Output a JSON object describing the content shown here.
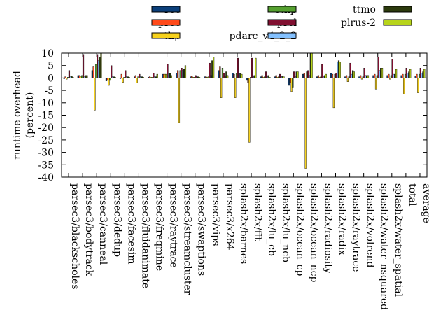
{
  "chart_data": {
    "type": "bar",
    "ylabel_lines": [
      "runtime overhead",
      "(percent)"
    ],
    "xlabel": "",
    "ylim": [
      -40,
      10
    ],
    "yticks": [
      10,
      5,
      0,
      -5,
      -10,
      -15,
      -20,
      -25,
      -30,
      -35,
      -40
    ],
    "grid": false,
    "legend_placement": "top",
    "categories": [
      "parsec3/blackscholes",
      "parsec3/bodytrack",
      "parsec3/canneal",
      "parsec3/dedup",
      "parsec3/facesim",
      "parsec3/fluidanimate",
      "parsec3/freqmine",
      "parsec3/raytrace",
      "parsec3/streamcluster",
      "parsec3/swaptions",
      "parsec3/vips",
      "parsec3/x264",
      "splash2x/barnes",
      "splash2x/fft",
      "splash2x/lu_cb",
      "splash2x/lu_ncb",
      "splash2x/ocean_cp",
      "splash2x/ocean_ncp",
      "splash2x/radiosity",
      "splash2x/radix",
      "splash2x/raytrace",
      "splash2x/volrend",
      "splash2x/water_nsquared",
      "splash2x/water_spatial",
      "total",
      "average"
    ],
    "series": [
      {
        "name": "rec",
        "color": "#0b3f7a",
        "values": [
          -0.3,
          1.0,
          3.0,
          -1.2,
          -0.3,
          0.5,
          0.3,
          1.5,
          2.0,
          0.5,
          0.5,
          3.0,
          2.0,
          -1.0,
          0.5,
          0.5,
          -3.0,
          1.5,
          0.5,
          2.0,
          0.5,
          0.5,
          1.0,
          1.0,
          1.0,
          0.8
        ]
      },
      {
        "name": "prec",
        "color": "#ff4a1a",
        "values": [
          0.5,
          1.0,
          4.5,
          -1.0,
          1.5,
          1.0,
          0.5,
          1.5,
          3.0,
          0.8,
          0.5,
          4.5,
          1.5,
          -2.0,
          1.0,
          1.0,
          -2.0,
          2.0,
          1.0,
          1.5,
          1.0,
          1.0,
          1.5,
          1.5,
          1.5,
          1.5
        ]
      },
      {
        "name": "thp",
        "color": "#f7d21c",
        "values": [
          -0.5,
          0.5,
          -13.0,
          -3.0,
          -1.8,
          -2.0,
          0.3,
          1.5,
          -18.0,
          0.3,
          0.3,
          -8.0,
          -8.0,
          -26.0,
          0.3,
          0.3,
          -5.5,
          -36.5,
          0.3,
          -12.0,
          -1.5,
          -0.5,
          -4.5,
          -0.5,
          -6.5,
          -6.0
        ]
      },
      {
        "name": "ethp",
        "color": "#55a02f",
        "values": [
          0.3,
          1.0,
          5.5,
          -1.0,
          0.3,
          0.5,
          0.3,
          1.5,
          3.0,
          0.3,
          0.5,
          4.0,
          2.0,
          0.3,
          0.5,
          0.5,
          -4.0,
          2.5,
          0.5,
          1.5,
          0.5,
          0.5,
          1.0,
          1.0,
          1.5,
          1.5
        ]
      },
      {
        "name": "prcl",
        "color": "#801030",
        "values": [
          3.0,
          9.5,
          9.5,
          5.0,
          3.0,
          1.5,
          2.0,
          5.5,
          4.0,
          1.0,
          6.0,
          2.0,
          8.0,
          8.0,
          2.5,
          1.5,
          2.5,
          3.0,
          5.5,
          2.0,
          6.0,
          4.0,
          8.5,
          7.5,
          4.0,
          4.0
        ]
      },
      {
        "name": "pdarc_v4_2_2",
        "color": "#84c1ff",
        "values": [
          0.5,
          0.5,
          7.0,
          0.5,
          0.5,
          0.5,
          0.5,
          2.0,
          3.0,
          0.5,
          1.0,
          0.5,
          2.0,
          0.5,
          0.5,
          0.5,
          0.5,
          1.0,
          0.5,
          6.5,
          1.5,
          1.0,
          3.0,
          1.5,
          2.0,
          2.0
        ]
      },
      {
        "name": "ttmo",
        "color": "#2c3a0d",
        "values": [
          0.8,
          1.0,
          8.5,
          0.5,
          0.5,
          0.5,
          0.5,
          2.0,
          3.5,
          0.5,
          7.0,
          2.5,
          2.0,
          1.0,
          1.0,
          0.8,
          2.5,
          10.0,
          1.0,
          7.0,
          3.0,
          1.0,
          4.0,
          1.5,
          2.5,
          2.5
        ]
      },
      {
        "name": "plrus-2",
        "color": "#b7d41a",
        "values": [
          0.3,
          1.0,
          10.0,
          0.3,
          0.3,
          0.3,
          1.5,
          1.0,
          5.0,
          0.3,
          8.5,
          1.0,
          1.5,
          8.0,
          0.3,
          0.5,
          2.5,
          10.0,
          1.5,
          6.5,
          2.5,
          1.0,
          4.0,
          3.5,
          3.5,
          3.5
        ]
      }
    ]
  }
}
